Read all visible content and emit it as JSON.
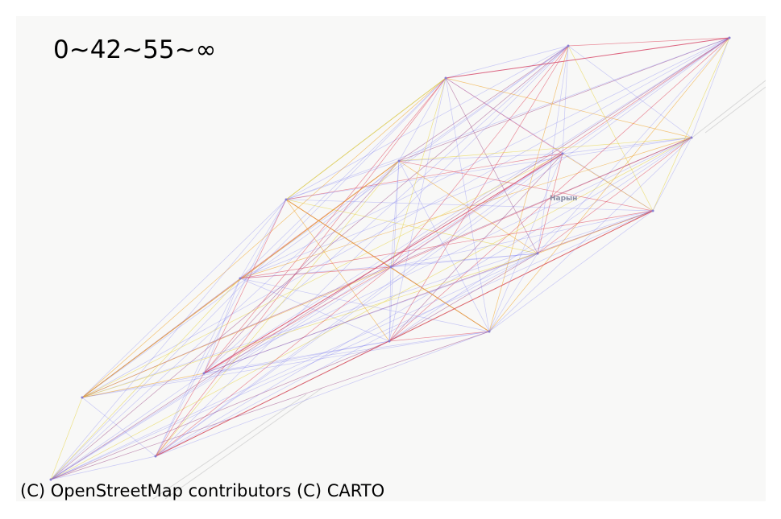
{
  "map": {
    "legend_label": "0~42~55~∞",
    "attribution": "(C) OpenStreetMap contributors (C) CARTO",
    "place_label": "Нарын",
    "basemap": "CARTO light (Positron)",
    "edge_colors": {
      "blue": "#6f6ff0",
      "red": "#e0425a",
      "yellow": "#e6d23a",
      "orange": "#f0a020",
      "purple": "#a0508c"
    },
    "nodes": [
      {
        "id": "n1",
        "color": "#8a7fd0"
      },
      {
        "id": "n2",
        "color": "#8a7fd0"
      },
      {
        "id": "n3",
        "color": "#8a7fd0"
      },
      {
        "id": "n4",
        "color": "#8a7fd0"
      },
      {
        "id": "n5",
        "color": "#8a7fd0"
      },
      {
        "id": "n6",
        "color": "#8a7fd0"
      },
      {
        "id": "n7",
        "color": "#8a7fd0"
      },
      {
        "id": "n8",
        "color": "#8a7fd0"
      },
      {
        "id": "n9",
        "color": "#8a7fd0"
      },
      {
        "id": "n10",
        "color": "#8a7fd0"
      },
      {
        "id": "n11",
        "color": "#8a7fd0"
      },
      {
        "id": "n12",
        "color": "#8a7fd0"
      },
      {
        "id": "n13",
        "color": "#8a7fd0"
      },
      {
        "id": "n14",
        "color": "#8a7fd0"
      },
      {
        "id": "n15",
        "color": "#8a7fd0"
      },
      {
        "id": "n16",
        "color": "#8a7fd0"
      }
    ]
  }
}
